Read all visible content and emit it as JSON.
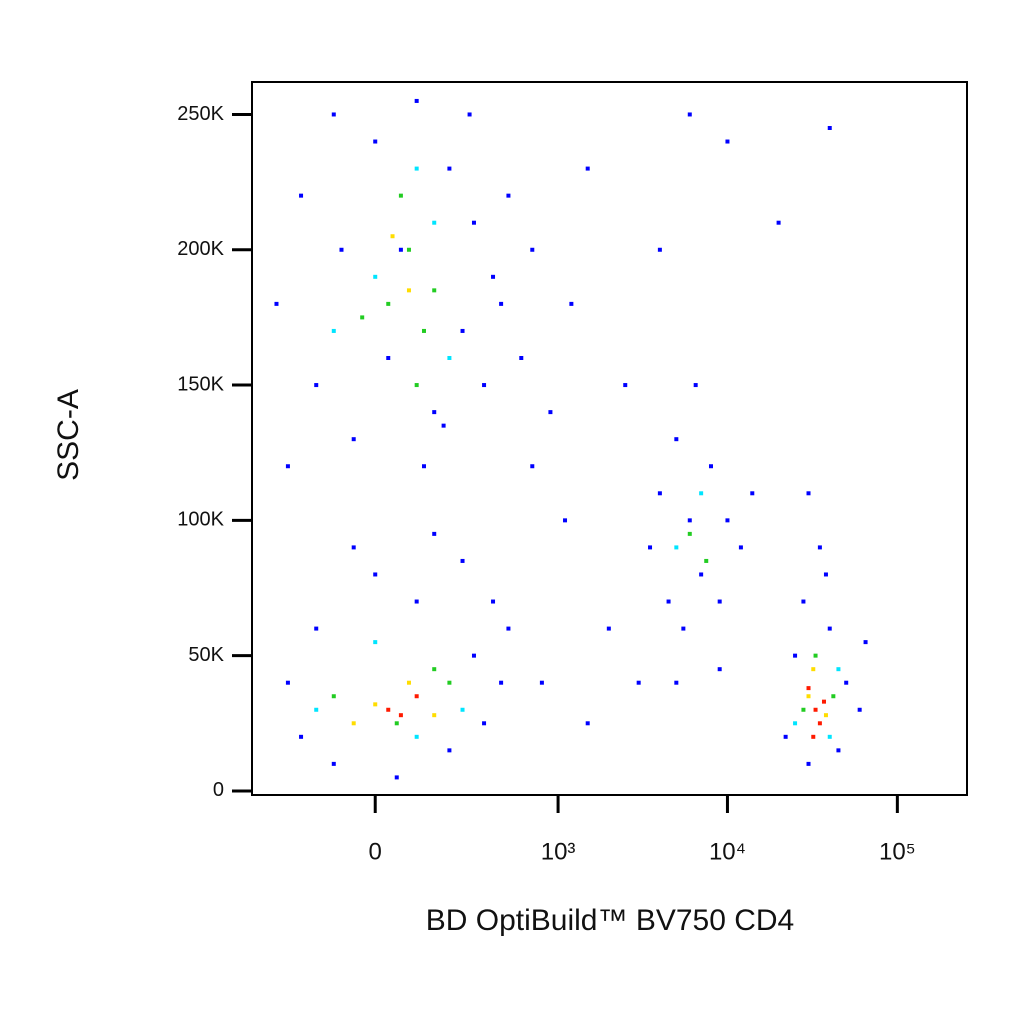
{
  "chart_data": {
    "type": "scatter",
    "x_label": "BD OptiBuild™ BV750 CD4",
    "y_label": "SSC-A",
    "xscale": "biexponential",
    "xlim": [
      -433,
      257000
    ],
    "ylim": [
      -1500,
      262000
    ],
    "xticks": [
      0,
      {
        "value": 1000,
        "label": "10³"
      },
      {
        "value": 10000,
        "label": "10⁴"
      },
      {
        "value": 100000,
        "label": "10⁵"
      }
    ],
    "yticks": [
      0,
      {
        "value": 50000,
        "label": "50K"
      },
      {
        "value": 100000,
        "label": "100K"
      },
      {
        "value": 150000,
        "label": "150K"
      },
      {
        "value": 200000,
        "label": "200K"
      },
      {
        "value": 250000,
        "label": "250K"
      }
    ],
    "series": [
      {
        "color": "#0000ff",
        "x": [
          -300,
          -200,
          -150,
          -100,
          -50,
          0,
          30,
          60,
          100,
          150,
          200,
          250,
          300,
          350,
          400,
          -250,
          120,
          280,
          -80,
          180,
          450,
          500,
          600,
          700,
          900,
          1200,
          1500,
          2500,
          4000,
          6000,
          10000,
          20000,
          40000,
          700,
          1100,
          2000,
          500,
          800,
          1500,
          3000,
          -250,
          -200,
          -150,
          -100,
          0,
          50,
          100,
          200,
          300,
          350,
          400,
          -50,
          150,
          250,
          450,
          3500,
          4000,
          4500,
          5000,
          5500,
          6000,
          7000,
          8000,
          9000,
          10000,
          12000,
          14000,
          5000,
          9000,
          6500,
          22000,
          25000,
          28000,
          30000,
          35000,
          40000,
          45000,
          50000,
          60000,
          65000,
          30000,
          38000
        ],
        "y": [
          180000,
          220000,
          150000,
          250000,
          130000,
          240000,
          160000,
          200000,
          255000,
          140000,
          230000,
          170000,
          210000,
          150000,
          190000,
          120000,
          120000,
          250000,
          200000,
          135000,
          180000,
          220000,
          160000,
          200000,
          140000,
          180000,
          230000,
          150000,
          200000,
          250000,
          240000,
          210000,
          245000,
          120000,
          100000,
          60000,
          60000,
          40000,
          25000,
          40000,
          40000,
          20000,
          60000,
          10000,
          80000,
          5000,
          70000,
          15000,
          50000,
          25000,
          70000,
          90000,
          95000,
          85000,
          40000,
          90000,
          110000,
          70000,
          130000,
          60000,
          100000,
          80000,
          120000,
          70000,
          100000,
          90000,
          110000,
          40000,
          45000,
          150000,
          20000,
          50000,
          70000,
          10000,
          90000,
          60000,
          15000,
          40000,
          30000,
          55000,
          110000,
          80000
        ]
      },
      {
        "color": "#00e5ff",
        "x": [
          0,
          100,
          200,
          -100,
          150,
          -150,
          250,
          0,
          100,
          5000,
          7000,
          25000,
          45000,
          40000
        ],
        "y": [
          190000,
          230000,
          160000,
          170000,
          210000,
          30000,
          30000,
          55000,
          20000,
          90000,
          110000,
          25000,
          45000,
          20000
        ]
      },
      {
        "color": "#22cc22",
        "x": [
          30,
          80,
          120,
          60,
          150,
          -30,
          100,
          -100,
          200,
          50,
          150,
          6000,
          7500,
          28000,
          42000,
          33000
        ],
        "y": [
          180000,
          200000,
          170000,
          220000,
          185000,
          175000,
          150000,
          35000,
          40000,
          25000,
          45000,
          95000,
          85000,
          30000,
          35000,
          50000
        ]
      },
      {
        "color": "#ffdd00",
        "x": [
          80,
          40,
          0,
          80,
          150,
          -50,
          30000,
          38000,
          32000
        ],
        "y": [
          185000,
          205000,
          32000,
          40000,
          28000,
          25000,
          35000,
          28000,
          45000
        ]
      },
      {
        "color": "#ff1a00",
        "x": [
          30,
          100,
          60,
          33000,
          35000,
          30000,
          37000,
          32000
        ],
        "y": [
          30000,
          35000,
          28000,
          30000,
          25000,
          38000,
          33000,
          20000
        ]
      }
    ]
  }
}
